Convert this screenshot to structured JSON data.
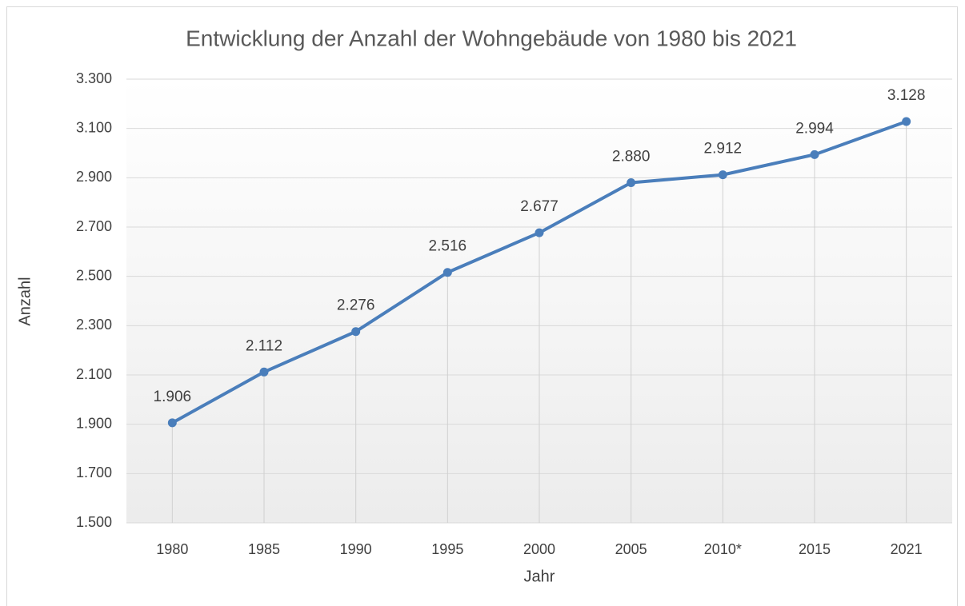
{
  "chart_data": {
    "type": "line",
    "title": "Entwicklung der Anzahl der Wohngebäude von 1980 bis 2021",
    "x_label": "Jahr",
    "y_label": "Anzahl",
    "categories": [
      "1980",
      "1985",
      "1990",
      "1995",
      "2000",
      "2005",
      "2010*",
      "2015",
      "2021"
    ],
    "series": [
      {
        "name": "Anzahl",
        "color": "#4a7ebb",
        "values": [
          1906,
          2112,
          2276,
          2516,
          2677,
          2880,
          2912,
          2994,
          3128
        ],
        "value_labels": [
          "1.906",
          "2.112",
          "2.276",
          "2.516",
          "2.677",
          "2.880",
          "2.912",
          "2.994",
          "3.128"
        ]
      }
    ],
    "ylim": [
      1500,
      3300
    ],
    "yticks": [
      {
        "value": 1500,
        "label": "1.500"
      },
      {
        "value": 1700,
        "label": "1.700"
      },
      {
        "value": 1900,
        "label": "1.900"
      },
      {
        "value": 2100,
        "label": "2.100"
      },
      {
        "value": 2300,
        "label": "2.300"
      },
      {
        "value": 2500,
        "label": "2.500"
      },
      {
        "value": 2700,
        "label": "2.700"
      },
      {
        "value": 2900,
        "label": "2.900"
      },
      {
        "value": 3100,
        "label": "3.100"
      },
      {
        "value": 3300,
        "label": "3.300"
      }
    ],
    "grid": true
  }
}
